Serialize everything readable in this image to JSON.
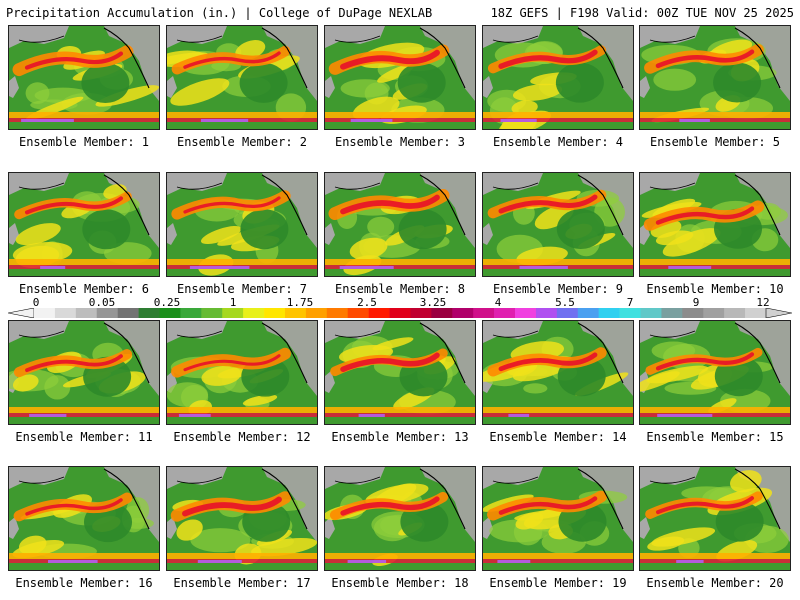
{
  "header": {
    "left": "Precipitation Accumulation (in.) | College of DuPage NEXLAB",
    "right": "18Z GEFS | F198 Valid: 00Z TUE NOV 25 2025"
  },
  "members": [
    {
      "label": "Ensemble Member: 1"
    },
    {
      "label": "Ensemble Member: 2"
    },
    {
      "label": "Ensemble Member: 3"
    },
    {
      "label": "Ensemble Member: 4"
    },
    {
      "label": "Ensemble Member: 5"
    },
    {
      "label": "Ensemble Member: 6"
    },
    {
      "label": "Ensemble Member: 7"
    },
    {
      "label": "Ensemble Member: 8"
    },
    {
      "label": "Ensemble Member: 9"
    },
    {
      "label": "Ensemble Member: 10"
    },
    {
      "label": "Ensemble Member: 11"
    },
    {
      "label": "Ensemble Member: 12"
    },
    {
      "label": "Ensemble Member: 13"
    },
    {
      "label": "Ensemble Member: 14"
    },
    {
      "label": "Ensemble Member: 15"
    },
    {
      "label": "Ensemble Member: 16"
    },
    {
      "label": "Ensemble Member: 17"
    },
    {
      "label": "Ensemble Member: 18"
    },
    {
      "label": "Ensemble Member: 19"
    },
    {
      "label": "Ensemble Member: 20"
    }
  ],
  "colorbar": {
    "labels": [
      "0",
      "0.05",
      "0.25",
      "1",
      "1.75",
      "2.5",
      "3.25",
      "4",
      "5.5",
      "7",
      "9",
      "12"
    ],
    "colors": [
      "#f2f2f2",
      "#d9d9d9",
      "#bdbdbd",
      "#969696",
      "#737373",
      "#2e7d32",
      "#1b8f1b",
      "#3aa83a",
      "#66bb33",
      "#a6d81e",
      "#e8f01a",
      "#ffe600",
      "#ffc400",
      "#ffa000",
      "#ff7a00",
      "#ff4a00",
      "#ff1a00",
      "#e0001a",
      "#c00030",
      "#9a0040",
      "#b0006a",
      "#d0108a",
      "#e020b0",
      "#f040e0",
      "#b050f0",
      "#7070f0",
      "#4aa0f0",
      "#30d0f0",
      "#40e0e0",
      "#60c8c8",
      "#7aa0a0",
      "#8c8c8c",
      "#a0a0a0",
      "#b8b8b8",
      "#d0d0d0"
    ]
  }
}
